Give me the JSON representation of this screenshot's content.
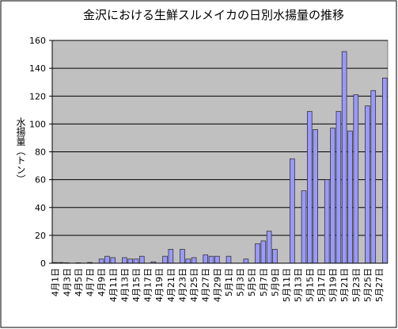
{
  "chart_data": {
    "type": "bar",
    "title": "金沢における生鮮スルメイカの日別水揚量の推移",
    "y_label": "水揚量（トン）",
    "categories": [
      "4月1日",
      null,
      "4月3日",
      null,
      "4月5日",
      null,
      "4月7日",
      null,
      "4月9日",
      null,
      "4月11日",
      null,
      "4月13日",
      null,
      "4月15日",
      null,
      "4月17日",
      null,
      "4月19日",
      null,
      "4月21日",
      null,
      "4月23日",
      null,
      "4月25日",
      null,
      "4月27日",
      null,
      "4月29日",
      null,
      "5月1日",
      null,
      "5月3日",
      null,
      "5月5日",
      null,
      "5月7日",
      null,
      "5月9日",
      null,
      "5月11日",
      null,
      "5月13日",
      null,
      "5月15日",
      null,
      "5月17日",
      null,
      "5月19日",
      null,
      "5月21日",
      null,
      "5月23日",
      null,
      "5月25日",
      null,
      "5月27日",
      null
    ],
    "values": [
      0.5,
      0.5,
      0.3,
      0,
      0.3,
      0,
      0.5,
      0,
      3,
      5,
      4,
      0,
      4,
      3,
      3,
      5,
      0,
      1,
      0,
      5,
      10,
      0,
      10,
      3,
      4,
      0,
      6,
      5,
      5,
      0,
      5,
      0,
      0,
      3,
      0,
      14,
      16,
      23,
      10,
      0,
      0,
      75,
      0,
      52,
      109,
      96,
      0,
      60,
      97,
      109,
      152,
      95,
      121,
      0,
      113,
      124,
      0,
      133
    ],
    "color": "#9999ff",
    "ylim": [
      0,
      160
    ],
    "yticks": [
      0,
      20,
      40,
      60,
      80,
      100,
      120,
      140,
      160
    ],
    "grid": true
  }
}
